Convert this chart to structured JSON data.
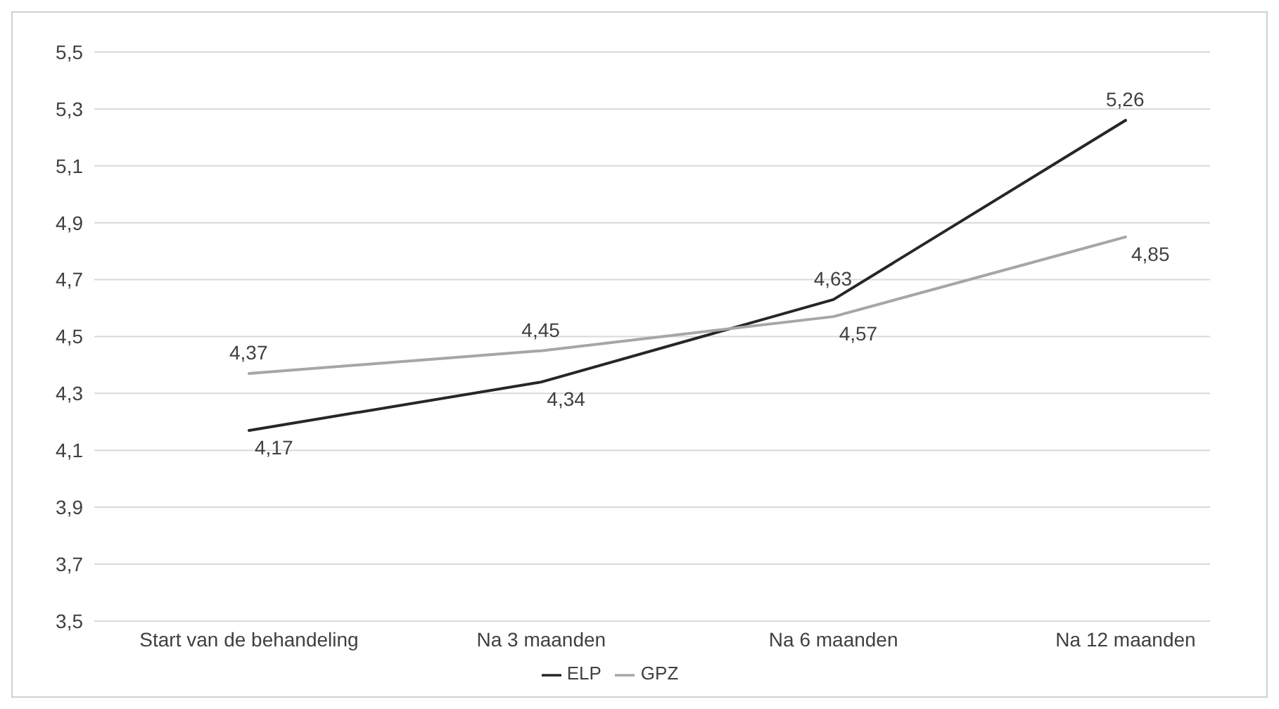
{
  "chart_data": {
    "type": "line",
    "categories": [
      "Start van de behandeling",
      "Na 3 maanden",
      "Na 6 maanden",
      "Na 12 maanden"
    ],
    "series": [
      {
        "name": "ELP",
        "color": "#262626",
        "values": [
          4.17,
          4.34,
          4.63,
          5.26
        ],
        "value_labels": [
          "4,17",
          "4,34",
          "4,63",
          "5,26"
        ]
      },
      {
        "name": "GPZ",
        "color": "#a6a6a6",
        "values": [
          4.37,
          4.45,
          4.57,
          4.85
        ],
        "value_labels": [
          "4,37",
          "4,45",
          "4,57",
          "4,85"
        ]
      }
    ],
    "ylim": [
      3.5,
      5.5
    ],
    "yticks": [
      {
        "value": 3.5,
        "label": "3,5"
      },
      {
        "value": 3.7,
        "label": "3,7"
      },
      {
        "value": 3.9,
        "label": "3,9"
      },
      {
        "value": 4.1,
        "label": "4,1"
      },
      {
        "value": 4.3,
        "label": "4,3"
      },
      {
        "value": 4.5,
        "label": "4,5"
      },
      {
        "value": 4.7,
        "label": "4,7"
      },
      {
        "value": 4.9,
        "label": "4,9"
      },
      {
        "value": 5.1,
        "label": "5,1"
      },
      {
        "value": 5.3,
        "label": "5,3"
      },
      {
        "value": 5.5,
        "label": "5,5"
      }
    ],
    "grid": "y",
    "legend": "bottom",
    "marker": "none",
    "line_style": "solid"
  }
}
